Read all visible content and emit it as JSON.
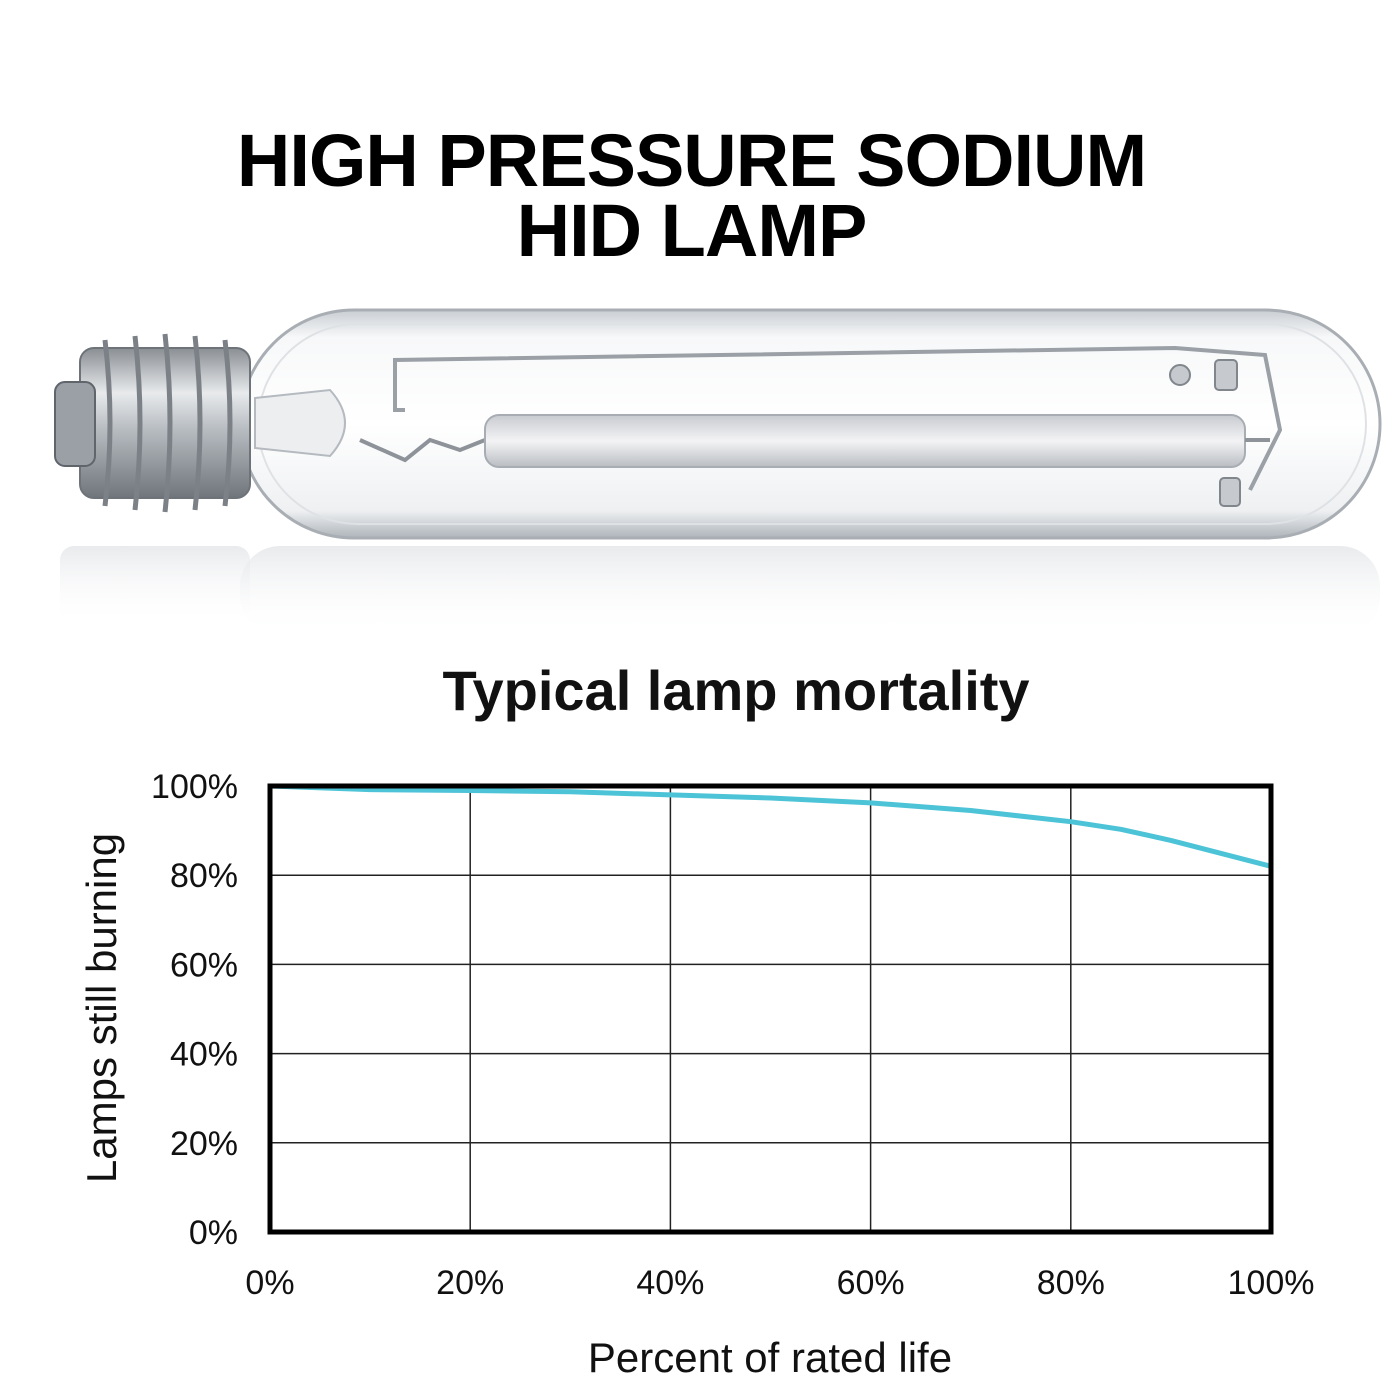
{
  "headline": {
    "line1": "HIGH PRESSURE SODIUM",
    "line2": "HID LAMP"
  },
  "product_image": {
    "icon": "hps-lamp-bulb-icon"
  },
  "chart_data": {
    "type": "line",
    "title": "Typical lamp mortality",
    "xlabel": "Percent of rated life",
    "ylabel": "Lamps still burning",
    "xlim": [
      0,
      100
    ],
    "ylim": [
      0,
      100
    ],
    "x_ticks": [
      "0%",
      "20%",
      "40%",
      "60%",
      "80%",
      "100%"
    ],
    "y_ticks": [
      "0%",
      "20%",
      "40%",
      "60%",
      "80%",
      "100%"
    ],
    "grid": true,
    "series": [
      {
        "color": "#4cc3d6",
        "x": [
          0,
          10,
          20,
          30,
          40,
          50,
          60,
          70,
          80,
          85,
          90,
          100
        ],
        "y": [
          100,
          99.2,
          99,
          98.7,
          98,
          97.3,
          96.2,
          94.5,
          92,
          90.3,
          87.8,
          82
        ]
      }
    ]
  }
}
